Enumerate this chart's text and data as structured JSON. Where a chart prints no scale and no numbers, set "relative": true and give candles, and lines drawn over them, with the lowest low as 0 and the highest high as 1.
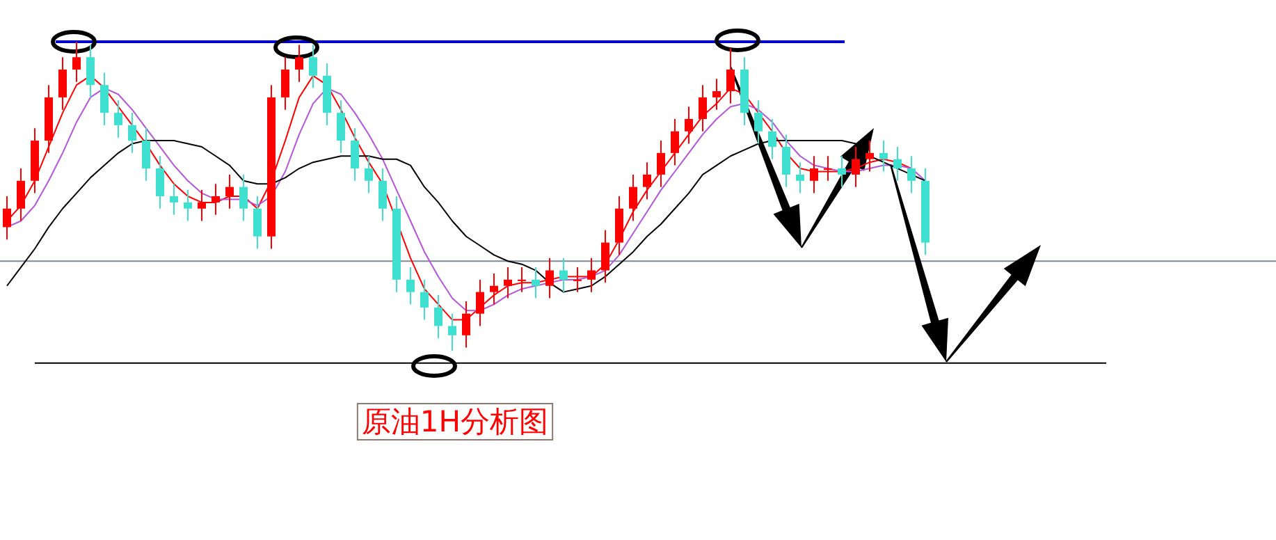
{
  "chart_data": {
    "type": "candlestick",
    "relative": true,
    "grid": false,
    "categories": [
      null,
      null,
      null,
      null,
      null,
      null,
      null,
      null,
      null,
      null,
      null,
      null,
      null,
      null,
      null,
      null,
      null,
      null,
      null,
      null,
      null,
      null,
      null,
      null,
      null,
      null,
      null,
      null,
      null,
      null,
      null,
      null,
      null,
      null,
      null,
      null,
      null,
      null,
      null,
      null,
      null,
      null,
      null,
      null,
      null,
      null,
      null,
      null,
      null,
      null,
      null,
      null,
      null,
      null,
      null,
      null,
      null,
      null,
      null,
      null,
      null,
      null,
      null,
      null,
      null,
      null,
      null
    ],
    "ohlc": [
      [
        0.4,
        0.5,
        0.36,
        0.46
      ],
      [
        0.46,
        0.59,
        0.42,
        0.55
      ],
      [
        0.55,
        0.72,
        0.51,
        0.68
      ],
      [
        0.68,
        0.86,
        0.64,
        0.82
      ],
      [
        0.82,
        0.95,
        0.78,
        0.91
      ],
      [
        0.91,
        1.0,
        0.87,
        0.95
      ],
      [
        0.95,
        0.99,
        0.82,
        0.86
      ],
      [
        0.86,
        0.9,
        0.73,
        0.77
      ],
      [
        0.77,
        0.81,
        0.69,
        0.73
      ],
      [
        0.73,
        0.77,
        0.64,
        0.68
      ],
      [
        0.68,
        0.72,
        0.55,
        0.59
      ],
      [
        0.59,
        0.63,
        0.46,
        0.5
      ],
      [
        0.5,
        0.54,
        0.44,
        0.48
      ],
      [
        0.48,
        0.52,
        0.42,
        0.46
      ],
      [
        0.46,
        0.52,
        0.42,
        0.48
      ],
      [
        0.48,
        0.54,
        0.44,
        0.5
      ],
      [
        0.5,
        0.57,
        0.46,
        0.53
      ],
      [
        0.53,
        0.57,
        0.42,
        0.46
      ],
      [
        0.46,
        0.5,
        0.33,
        0.37
      ],
      [
        0.37,
        0.86,
        0.33,
        0.82
      ],
      [
        0.82,
        0.95,
        0.78,
        0.91
      ],
      [
        0.91,
        0.99,
        0.87,
        0.95
      ],
      [
        0.95,
        0.99,
        0.85,
        0.89
      ],
      [
        0.89,
        0.93,
        0.73,
        0.77
      ],
      [
        0.77,
        0.81,
        0.64,
        0.68
      ],
      [
        0.68,
        0.72,
        0.55,
        0.59
      ],
      [
        0.59,
        0.63,
        0.51,
        0.55
      ],
      [
        0.55,
        0.59,
        0.42,
        0.46
      ],
      [
        0.46,
        0.5,
        0.19,
        0.23
      ],
      [
        0.23,
        0.27,
        0.15,
        0.19
      ],
      [
        0.19,
        0.23,
        0.1,
        0.14
      ],
      [
        0.14,
        0.18,
        0.04,
        0.08
      ],
      [
        0.08,
        0.12,
        0,
        0.05
      ],
      [
        0.05,
        0.16,
        0.01,
        0.12
      ],
      [
        0.12,
        0.23,
        0.08,
        0.19
      ],
      [
        0.19,
        0.25,
        0.15,
        0.21
      ],
      [
        0.21,
        0.27,
        0.17,
        0.23
      ],
      [
        0.23,
        0.27,
        0.19,
        0.23
      ],
      [
        0.23,
        0.27,
        0.17,
        0.21
      ],
      [
        0.21,
        0.3,
        0.17,
        0.26
      ],
      [
        0.26,
        0.3,
        0.19,
        0.23
      ],
      [
        0.23,
        0.27,
        0.19,
        0.23
      ],
      [
        0.23,
        0.3,
        0.19,
        0.26
      ],
      [
        0.26,
        0.39,
        0.22,
        0.35
      ],
      [
        0.35,
        0.5,
        0.31,
        0.46
      ],
      [
        0.46,
        0.57,
        0.42,
        0.53
      ],
      [
        0.53,
        0.61,
        0.49,
        0.57
      ],
      [
        0.57,
        0.68,
        0.53,
        0.64
      ],
      [
        0.64,
        0.75,
        0.6,
        0.71
      ],
      [
        0.71,
        0.79,
        0.67,
        0.75
      ],
      [
        0.75,
        0.86,
        0.71,
        0.82
      ],
      [
        0.82,
        0.88,
        0.78,
        0.84
      ],
      [
        0.84,
        0.98,
        0.8,
        0.91
      ],
      [
        0.91,
        0.95,
        0.73,
        0.77
      ],
      [
        0.77,
        0.81,
        0.67,
        0.71
      ],
      [
        0.71,
        0.75,
        0.62,
        0.66
      ],
      [
        0.66,
        0.7,
        0.53,
        0.57
      ],
      [
        0.57,
        0.61,
        0.51,
        0.55
      ],
      [
        0.55,
        0.63,
        0.51,
        0.59
      ],
      [
        0.59,
        0.63,
        0.55,
        0.59
      ],
      [
        0.59,
        0.63,
        0.53,
        0.57
      ],
      [
        0.57,
        0.66,
        0.53,
        0.62
      ],
      [
        0.62,
        0.68,
        0.58,
        0.64
      ],
      [
        0.64,
        0.68,
        0.58,
        0.62
      ],
      [
        0.62,
        0.66,
        0.55,
        0.59
      ],
      [
        0.59,
        0.63,
        0.51,
        0.55
      ],
      [
        0.55,
        0.59,
        0.31,
        0.35
      ]
    ],
    "colors": [
      "#ff0000",
      "#ff0000",
      "#ff0000",
      "#ff0000",
      "#ff0000",
      "#ff0000",
      "#40e0d0",
      "#40e0d0",
      "#40e0d0",
      "#40e0d0",
      "#40e0d0",
      "#40e0d0",
      "#40e0d0",
      "#40e0d0",
      "#ff0000",
      "#ff0000",
      "#ff0000",
      "#40e0d0",
      "#40e0d0",
      "#ff0000",
      "#ff0000",
      "#ff0000",
      "#40e0d0",
      "#40e0d0",
      "#40e0d0",
      "#40e0d0",
      "#40e0d0",
      "#40e0d0",
      "#40e0d0",
      "#40e0d0",
      "#40e0d0",
      "#40e0d0",
      "#40e0d0",
      "#ff0000",
      "#ff0000",
      "#ff0000",
      "#ff0000",
      "#ff0000",
      "#40e0d0",
      "#ff0000",
      "#40e0d0",
      "#ff0000",
      "#ff0000",
      "#ff0000",
      "#ff0000",
      "#ff0000",
      "#ff0000",
      "#ff0000",
      "#ff0000",
      "#ff0000",
      "#ff0000",
      "#ff0000",
      "#ff0000",
      "#40e0d0",
      "#40e0d0",
      "#40e0d0",
      "#40e0d0",
      "#40e0d0",
      "#ff0000",
      "#ff0000",
      "#40e0d0",
      "#ff0000",
      "#ff0000",
      "#40e0d0",
      "#40e0d0",
      "#40e0d0",
      "#40e0d0"
    ],
    "series": [
      {
        "type": "line",
        "color": "#ff0000",
        "values": [
          0.42,
          0.47,
          0.55,
          0.66,
          0.77,
          0.86,
          0.89,
          0.85,
          0.79,
          0.73,
          0.67,
          0.6,
          0.54,
          0.5,
          0.48,
          0.48,
          0.5,
          0.5,
          0.46,
          0.55,
          0.68,
          0.82,
          0.89,
          0.86,
          0.78,
          0.69,
          0.61,
          0.54,
          null,
          0.3,
          0.2,
          0.15,
          0.1,
          0.1,
          0.14,
          0.18,
          0.21,
          0.22,
          0.22,
          0.23,
          0.24,
          0.24,
          0.24,
          0.28,
          0.36,
          0.45,
          0.52,
          0.58,
          0.64,
          0.7,
          0.76,
          0.8,
          0.85,
          0.83,
          0.77,
          0.71,
          0.64,
          0.59,
          0.58,
          0.58,
          0.58,
          0.59,
          0.61,
          0.62,
          0.61,
          0.59,
          null
        ]
      },
      {
        "type": "line",
        "color": "#b455d9",
        "values": [
          0.4,
          0.42,
          0.47,
          0.55,
          0.64,
          0.74,
          0.82,
          0.85,
          0.83,
          0.78,
          0.72,
          0.66,
          0.6,
          0.55,
          0.51,
          0.49,
          0.49,
          0.49,
          0.47,
          0.5,
          0.58,
          0.7,
          0.8,
          0.85,
          0.83,
          0.77,
          0.7,
          0.62,
          0.52,
          0.42,
          0.32,
          0.24,
          0.17,
          0.13,
          0.13,
          0.15,
          0.18,
          0.2,
          0.21,
          0.22,
          0.23,
          0.23,
          0.24,
          0.26,
          0.31,
          0.38,
          0.45,
          0.52,
          0.58,
          0.64,
          0.7,
          0.75,
          0.79,
          0.8,
          0.78,
          0.74,
          0.68,
          0.63,
          0.6,
          0.59,
          0.58,
          0.58,
          0.59,
          0.6,
          0.6,
          0.59,
          0.55
        ]
      },
      {
        "type": "line",
        "color": "#000000",
        "values": [
          0.21,
          0.27,
          0.33,
          0.4,
          0.46,
          0.51,
          0.56,
          0.6,
          0.64,
          0.67,
          0.68,
          0.68,
          0.68,
          0.67,
          0.66,
          0.63,
          0.6,
          0.55,
          0.54,
          0.54,
          0.56,
          0.59,
          0.61,
          0.62,
          0.63,
          0.63,
          0.63,
          0.62,
          0.62,
          0.6,
          0.53,
          0.48,
          0.42,
          0.37,
          0.34,
          0.31,
          0.29,
          0.28,
          0.26,
          0.22,
          0.19,
          0.2,
          0.21,
          0.24,
          0.28,
          0.32,
          0.37,
          0.41,
          0.46,
          0.51,
          0.57,
          0.6,
          0.63,
          0.65,
          0.67,
          0.68,
          0.68,
          0.68,
          0.68,
          0.68,
          0.68,
          0.67,
          0.63,
          0.61,
          0.59,
          0.57,
          0.55
        ]
      }
    ],
    "ref_lines": [
      {
        "axis": "y",
        "value": 1.0,
        "color": "#0000cc"
      },
      {
        "axis": "y",
        "value": 0.29,
        "color": "#7a8a99"
      },
      {
        "axis": "y",
        "value": -0.04,
        "color": "#000000"
      }
    ],
    "annotations": [
      "原油1H分析图"
    ]
  }
}
